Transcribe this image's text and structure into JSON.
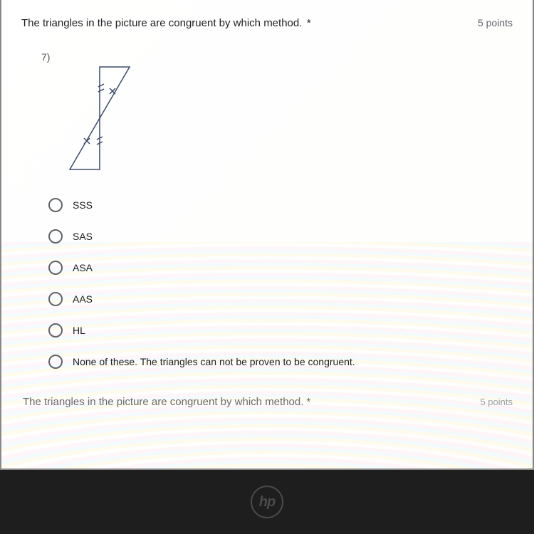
{
  "question": {
    "title": "The triangles in the picture are congruent by which method.",
    "required_marker": "*",
    "points": "5 points",
    "problem_number": "7)"
  },
  "figure": {
    "type": "diagram",
    "stroke_color": "#3b4a6b",
    "stroke_width": 1.5,
    "tick_color": "#3b4a6b",
    "top_triangle": [
      [
        50,
        10
      ],
      [
        92,
        10
      ],
      [
        50,
        82
      ]
    ],
    "bottom_triangle": [
      [
        50,
        82
      ],
      [
        8,
        154
      ],
      [
        50,
        154
      ]
    ],
    "ticks": {
      "top_left_double": [
        [
          48,
          38,
          56,
          34
        ],
        [
          48,
          45,
          56,
          41
        ]
      ],
      "top_right_single_x": [
        68,
        44
      ],
      "bottom_left_single_x": [
        32,
        114
      ],
      "bottom_right_double": [
        [
          46,
          112,
          54,
          108
        ],
        [
          46,
          119,
          54,
          115
        ]
      ]
    }
  },
  "options": [
    {
      "label": "SSS"
    },
    {
      "label": "SAS"
    },
    {
      "label": "ASA"
    },
    {
      "label": "AAS"
    },
    {
      "label": "HL"
    },
    {
      "label": "None of these. The triangles can not be proven to be congruent."
    }
  ],
  "next_question": {
    "title": "The triangles in the picture are congruent by which method. *",
    "points": "5 points"
  },
  "laptop": {
    "brand": "hp"
  },
  "colors": {
    "body_bg": "#2a2a2a",
    "screen_bg": "#ffffff",
    "text_primary": "#202124",
    "text_muted": "#5f6368",
    "radio_border": "#5f6368"
  }
}
